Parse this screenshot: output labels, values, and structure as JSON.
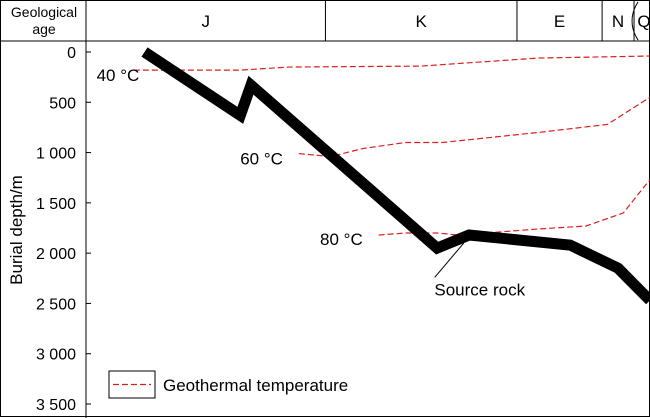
{
  "header": {
    "age_label_line1": "Geological",
    "age_label_line2": "age",
    "periods": [
      "J",
      "K",
      "E",
      "N",
      "Q"
    ]
  },
  "legend": {
    "label": "Geothermal temperature"
  },
  "colors": {
    "burial_curve": "#000000",
    "isotherm": "#d9201c",
    "frame": "#000000"
  },
  "chart_data": {
    "type": "line",
    "title": "",
    "xlabel": "Geological age",
    "ylabel": "Burial depth/m",
    "ylim": [
      0,
      3500
    ],
    "y_inverted": true,
    "y_ticks": [
      0,
      500,
      1000,
      1500,
      2000,
      2500,
      3000,
      3500
    ],
    "y_tick_labels": [
      "0",
      "500",
      "1 000",
      "1 500",
      "2 000",
      "2 500",
      "3 000",
      "3 500"
    ],
    "x_categories": [
      "J",
      "K",
      "E",
      "N",
      "Q"
    ],
    "x_category_spans": [
      [
        0,
        45
      ],
      [
        45,
        81
      ],
      [
        81,
        97
      ],
      [
        97,
        103
      ],
      [
        103,
        106
      ]
    ],
    "xlim": [
      0,
      106
    ],
    "series": [
      {
        "name": "Source rock",
        "style": "thick-band",
        "x": [
          11,
          29,
          31,
          66,
          72,
          91,
          100,
          106
        ],
        "y": [
          0,
          630,
          330,
          1950,
          1820,
          1920,
          2150,
          2470
        ]
      },
      {
        "name": "40 °C",
        "style": "dashed",
        "x": [
          9,
          29,
          38,
          63,
          85,
          106
        ],
        "y": [
          180,
          180,
          150,
          140,
          60,
          40
        ]
      },
      {
        "name": "60 °C",
        "style": "dashed",
        "x": [
          40,
          46,
          52,
          60,
          67,
          85,
          98,
          106
        ],
        "y": [
          1010,
          1040,
          960,
          900,
          900,
          800,
          720,
          450
        ]
      },
      {
        "name": "80 °C",
        "style": "dashed",
        "x": [
          55,
          60,
          66,
          70,
          85,
          94,
          101,
          104,
          106
        ],
        "y": [
          1820,
          1800,
          1800,
          1820,
          1760,
          1730,
          1600,
          1400,
          1270
        ]
      }
    ],
    "annotations": [
      {
        "text": "40 °C",
        "x": 6,
        "y": 230
      },
      {
        "text": "60 °C",
        "x": 33,
        "y": 1060
      },
      {
        "text": "80 °C",
        "x": 48,
        "y": 1860
      },
      {
        "text": "Source rock",
        "x": 74,
        "y": 2360,
        "pointer_to": {
          "x": 71,
          "y": 1900
        }
      }
    ],
    "legend_position": "bottom-left"
  }
}
